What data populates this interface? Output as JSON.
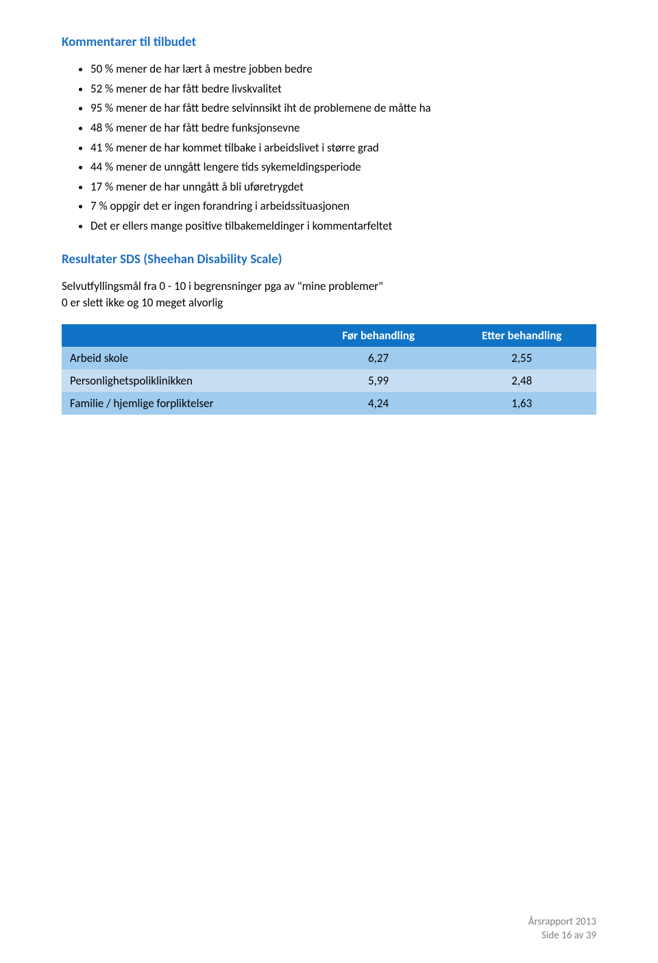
{
  "section1": {
    "heading": "Kommentarer til tilbudet",
    "bullets": [
      "50 % mener de har lært å mestre jobben bedre",
      "52 % mener de har fått bedre livskvalitet",
      "95 % mener de har fått bedre selvinnsikt iht de problemene de måtte ha",
      "48 % mener de har fått bedre funksjonsevne",
      "41 % mener de har kommet tilbake i arbeidslivet i større grad",
      "44 % mener de unngått lengere tids sykemeldingsperiode",
      "17 % mener de har unngått å bli uføretrygdet",
      "7 % oppgir det er ingen forandring i arbeidssituasjonen",
      "Det er ellers mange positive tilbakemeldinger i kommentarfeltet"
    ]
  },
  "section2": {
    "heading": "Resultater SDS (Sheehan Disability Scale)",
    "intro_line1": "Selvutfyllingsmål fra 0 - 10 i begrensninger pga  av \"mine problemer\"",
    "intro_line2": "0 er slett ikke og 10 meget alvorlig"
  },
  "table": {
    "columns": [
      "",
      "Før behandling",
      "Etter behandling"
    ],
    "header_bg": "#1074c6",
    "header_color": "#ffffff",
    "row_colors": [
      "#9fcbef",
      "#c6ddf2",
      "#9fcbef"
    ],
    "rows": [
      {
        "label": "Arbeid skole",
        "before": "6,27",
        "after": "2,55"
      },
      {
        "label": "Personlighetspoliklinikken",
        "before": "5,99",
        "after": "2,48"
      },
      {
        "label": "Familie / hjemlige forpliktelser",
        "before": "4,24",
        "after": "1,63"
      }
    ]
  },
  "footer": {
    "line1": "Årsrapport 2013",
    "line2": "Side 16 av 39"
  }
}
